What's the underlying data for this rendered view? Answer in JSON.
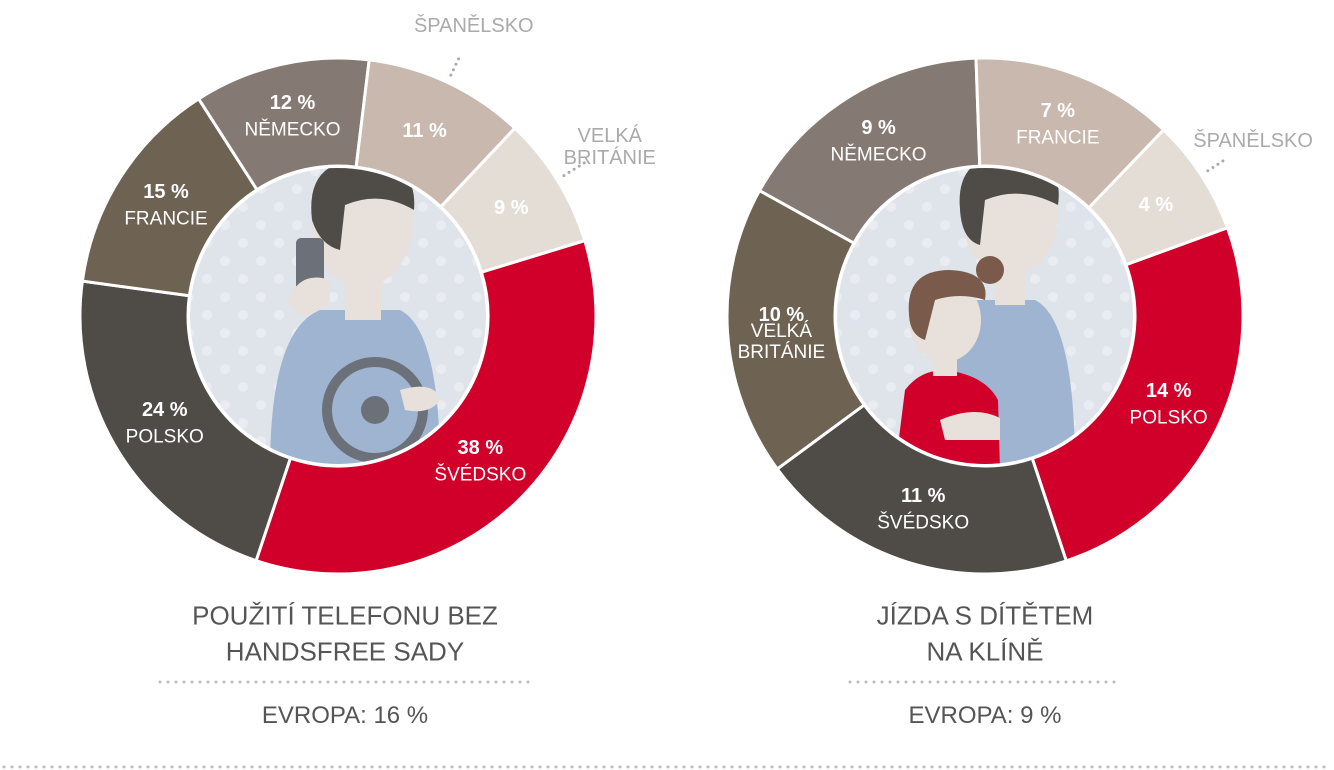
{
  "chart_data": [
    {
      "type": "pie",
      "title": "POUŽITÍ TELEFONU BEZ HANDSFREE SADY",
      "subtitle": "EVROPA: 16 %",
      "categories": [
        "ŠVÉDSKO",
        "POLSKO",
        "FRANCIE",
        "NĚMECKO",
        "ŠPANĚLSKO",
        "VELKÁ BRITÁNIE"
      ],
      "values": [
        38,
        24,
        15,
        12,
        11,
        9
      ],
      "value_labels": [
        "38 %",
        "24 %",
        "15 %",
        "12 %",
        "11 %",
        "9 %"
      ],
      "colors": [
        "#d0002a",
        "#4f4c48",
        "#6e6252",
        "#857a73",
        "#c9b8ae",
        "#e4ddd5"
      ]
    },
    {
      "type": "pie",
      "title": "JÍZDA S DÍTĚTEM NA KLÍNĚ",
      "subtitle": "EVROPA: 9 %",
      "categories": [
        "POLSKO",
        "ŠVÉDSKO",
        "VELKÁ BRITÁNIE",
        "NĚMECKO",
        "FRANCIE",
        "ŠPANĚLSKO"
      ],
      "values": [
        14,
        11,
        10,
        9,
        7,
        4
      ],
      "value_labels": [
        "14 %",
        "11 %",
        "10 %",
        "9 %",
        "7 %",
        "4 %"
      ],
      "colors": [
        "#d0002a",
        "#4f4c48",
        "#6e6252",
        "#857a73",
        "#c9b8ae",
        "#e4ddd5"
      ]
    }
  ]
}
